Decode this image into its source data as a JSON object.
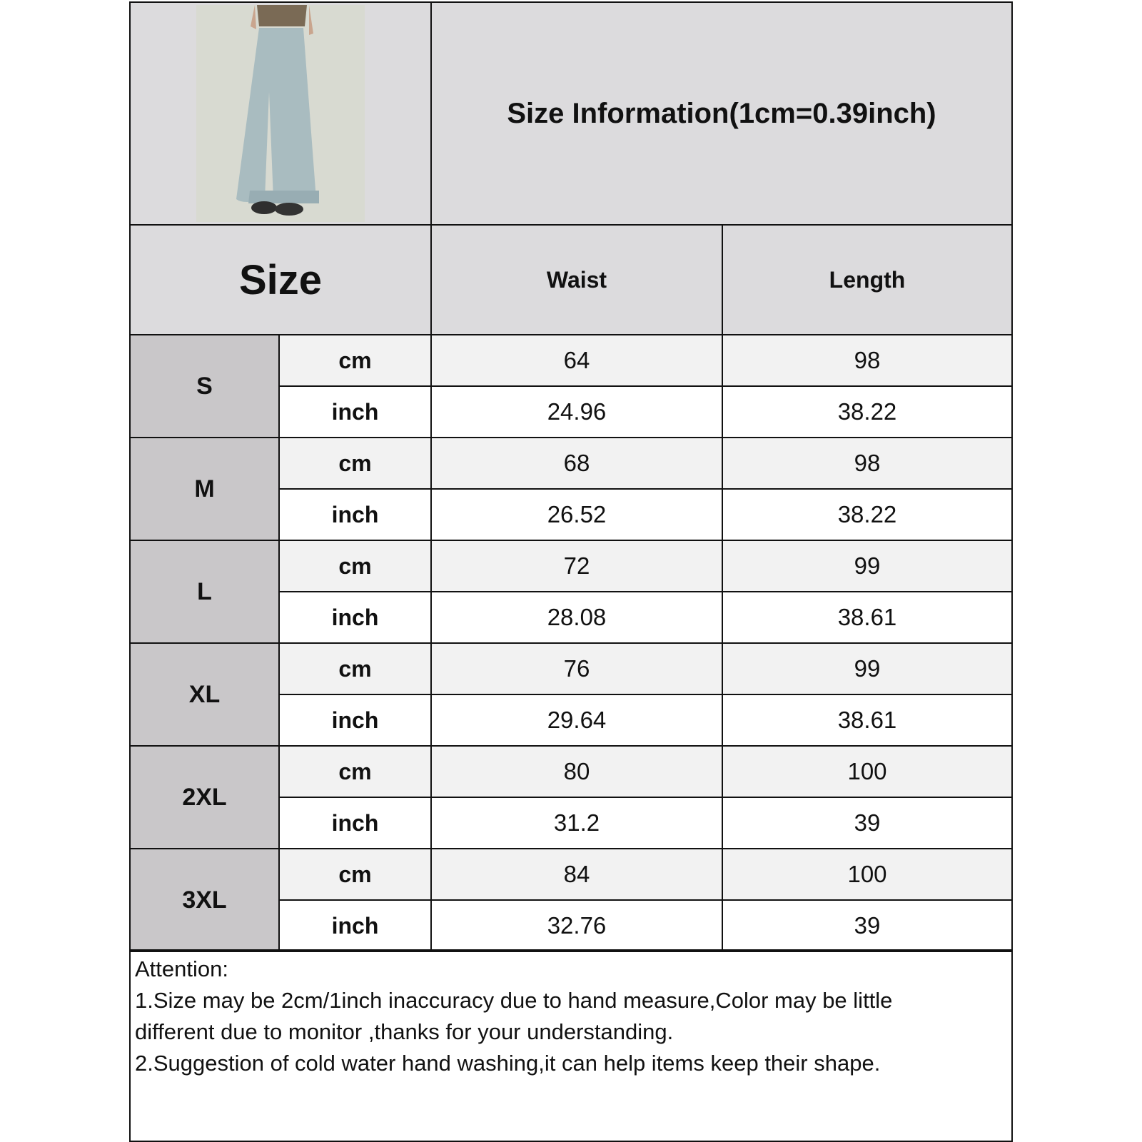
{
  "title": "Size Information(1cm=0.39inch)",
  "headers": {
    "size": "Size",
    "waist": "Waist",
    "length": "Length"
  },
  "rows": [
    {
      "size": "S",
      "cm": {
        "unit": "cm",
        "waist": "64",
        "length": "98"
      },
      "inch": {
        "unit": "inch",
        "waist": "24.96",
        "length": "38.22"
      }
    },
    {
      "size": "M",
      "cm": {
        "unit": "cm",
        "waist": "68",
        "length": "98"
      },
      "inch": {
        "unit": "inch",
        "waist": "26.52",
        "length": "38.22"
      }
    },
    {
      "size": "L",
      "cm": {
        "unit": "cm",
        "waist": "72",
        "length": "99"
      },
      "inch": {
        "unit": "inch",
        "waist": "28.08",
        "length": "38.61"
      }
    },
    {
      "size": "XL",
      "cm": {
        "unit": "cm",
        "waist": "76",
        "length": "99"
      },
      "inch": {
        "unit": "inch",
        "waist": "29.64",
        "length": "38.61"
      }
    },
    {
      "size": "2XL",
      "cm": {
        "unit": "cm",
        "waist": "80",
        "length": "100"
      },
      "inch": {
        "unit": "inch",
        "waist": "31.2",
        "length": "39"
      }
    },
    {
      "size": "3XL",
      "cm": {
        "unit": "cm",
        "waist": "84",
        "length": "100"
      },
      "inch": {
        "unit": "inch",
        "waist": "32.76",
        "length": "39"
      }
    }
  ],
  "attention": {
    "heading": "Attention:",
    "line1a": "1.Size may be 2cm/1inch inaccuracy due to hand measure,Color may be little",
    "line1b": "different due to monitor ,thanks for your understanding.",
    "line2": "2.Suggestion of cold water hand washing,it can help items keep their shape."
  }
}
